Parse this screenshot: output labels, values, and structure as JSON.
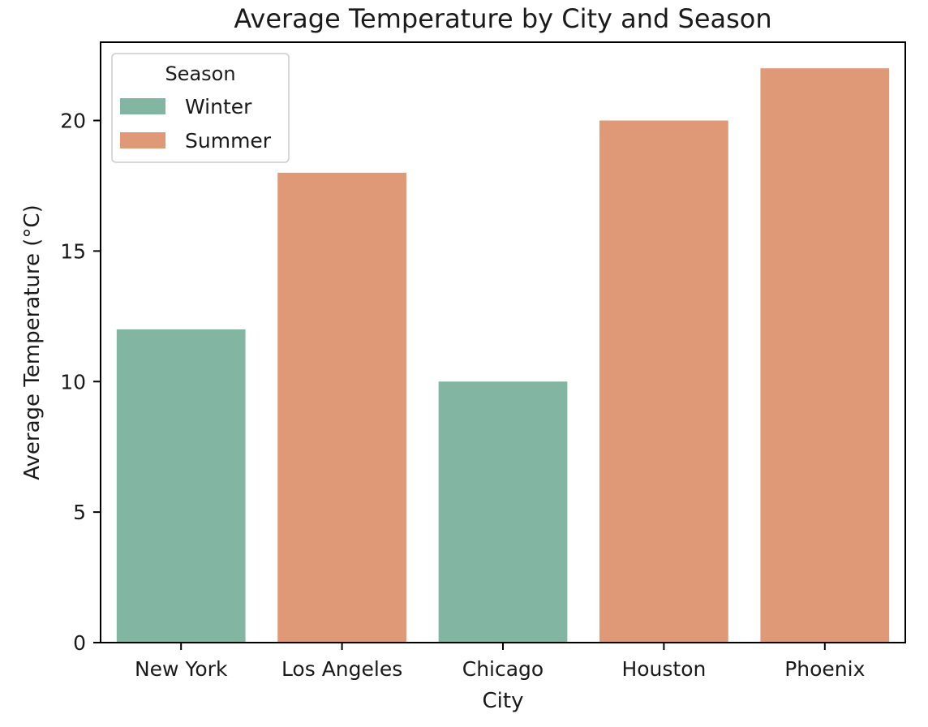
{
  "chart_data": {
    "type": "bar",
    "title": "Average Temperature by City and Season",
    "xlabel": "City",
    "ylabel": "Average Temperature (°C)",
    "categories": [
      "New York",
      "Los Angeles",
      "Chicago",
      "Houston",
      "Phoenix"
    ],
    "values": [
      12,
      18,
      10,
      20,
      22
    ],
    "bar_season": [
      "Winter",
      "Summer",
      "Winter",
      "Summer",
      "Summer"
    ],
    "ylim": [
      0,
      23
    ],
    "yticks": [
      0,
      5,
      10,
      15,
      20
    ],
    "grid": false,
    "legend": {
      "title": "Season",
      "placement": "top-left",
      "entries": [
        {
          "name": "Winter",
          "color": "#82b5a2"
        },
        {
          "name": "Summer",
          "color": "#df9977"
        }
      ]
    }
  }
}
